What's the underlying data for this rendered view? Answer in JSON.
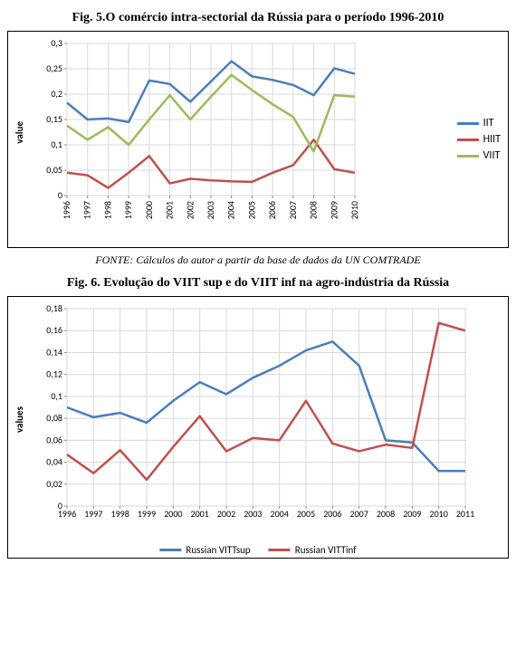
{
  "fig5": {
    "title": "Fig. 5.O comércio intra-sectorial da Rússia para o período 1996-2010",
    "caption": "FONTE: Cálculos do autor a partir da base de dados da  UN COMTRADE",
    "ylabel": "value",
    "type": "line",
    "background_color": "#ffffff",
    "grid_color": "#d9d9d9",
    "axis_color": "#888888",
    "ylim": [
      0,
      0.3
    ],
    "ytick_step": 0.05,
    "y_ticks": [
      "0",
      "0,05",
      "0,1",
      "0,15",
      "0,2",
      "0,25",
      "0,3"
    ],
    "x_categories": [
      "1996",
      "1997",
      "1998",
      "1999",
      "2000",
      "2001",
      "2002",
      "2003",
      "2004",
      "2005",
      "2006",
      "2007",
      "2008",
      "2009",
      "2010"
    ],
    "x_rotated": true,
    "label_fontsize": 10,
    "line_width": 2.5,
    "series": [
      {
        "name": "IIT",
        "color": "#4a7ebb",
        "values": [
          0.183,
          0.15,
          0.152,
          0.145,
          0.227,
          0.22,
          0.185,
          0.225,
          0.265,
          0.235,
          0.228,
          0.218,
          0.198,
          0.251,
          0.24
        ]
      },
      {
        "name": "HIIT",
        "color": "#c0504d",
        "values": [
          0.045,
          0.04,
          0.015,
          0.045,
          0.078,
          0.024,
          0.033,
          0.03,
          0.028,
          0.027,
          0.045,
          0.06,
          0.11,
          0.052,
          0.045
        ]
      },
      {
        "name": "VIIT",
        "color": "#9bbb59",
        "values": [
          0.138,
          0.11,
          0.135,
          0.1,
          0.15,
          0.198,
          0.15,
          0.195,
          0.238,
          0.208,
          0.18,
          0.155,
          0.087,
          0.198,
          0.195
        ]
      }
    ]
  },
  "fig6": {
    "title": "Fig. 6. Evolução do VIIT sup e do  VIIT inf na agro-indústria da Rússia",
    "ylabel": "values",
    "type": "line",
    "background_color": "#ffffff",
    "grid_color": "#d9d9d9",
    "axis_color": "#888888",
    "ylim": [
      0,
      0.18
    ],
    "ytick_step": 0.02,
    "y_ticks": [
      "0",
      "0,02",
      "0,04",
      "0,06",
      "0,08",
      "0,1",
      "0,12",
      "0,14",
      "0,16",
      "0,18"
    ],
    "x_categories": [
      "1996",
      "1997",
      "1998",
      "1999",
      "2000",
      "2001",
      "2002",
      "2003",
      "2004",
      "2005",
      "2006",
      "2007",
      "2008",
      "2009",
      "2010",
      "2011"
    ],
    "x_rotated": false,
    "label_fontsize": 10,
    "line_width": 2.5,
    "series": [
      {
        "name": "Russian VITTsup",
        "color": "#4a7ebb",
        "values": [
          0.09,
          0.081,
          0.085,
          0.076,
          0.096,
          0.113,
          0.102,
          0.117,
          0.128,
          0.142,
          0.15,
          0.128,
          0.06,
          0.058,
          0.032,
          0.032
        ]
      },
      {
        "name": "Russian VITTinf",
        "color": "#c0504d",
        "values": [
          0.047,
          0.03,
          0.051,
          0.024,
          0.054,
          0.082,
          0.05,
          0.062,
          0.06,
          0.096,
          0.057,
          0.05,
          0.056,
          0.053,
          0.167,
          0.16
        ]
      }
    ]
  }
}
